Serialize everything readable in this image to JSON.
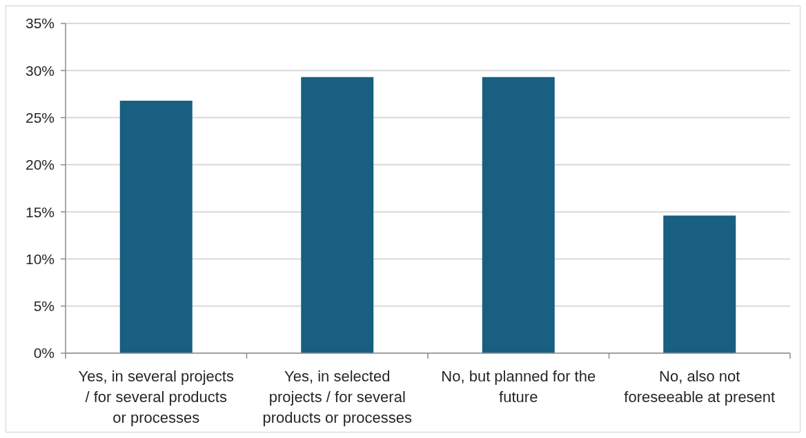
{
  "chart_data": {
    "type": "bar",
    "categories": [
      "Yes, in several projects / for several products or processes",
      "Yes, in selected projects / for several products or processes",
      "No, but planned for the future",
      "No, also not foreseeable at present"
    ],
    "values": [
      26.8,
      29.3,
      29.3,
      14.6
    ],
    "color": "#185f81",
    "ylim": [
      0,
      35
    ],
    "yticks": [
      {
        "value": 0,
        "label": "0%"
      },
      {
        "value": 5,
        "label": "5%"
      },
      {
        "value": 10,
        "label": "10%"
      },
      {
        "value": 15,
        "label": "15%"
      },
      {
        "value": 20,
        "label": "20%"
      },
      {
        "value": 25,
        "label": "25%"
      },
      {
        "value": 30,
        "label": "30%"
      },
      {
        "value": 35,
        "label": "35%"
      }
    ],
    "grid": "y"
  }
}
